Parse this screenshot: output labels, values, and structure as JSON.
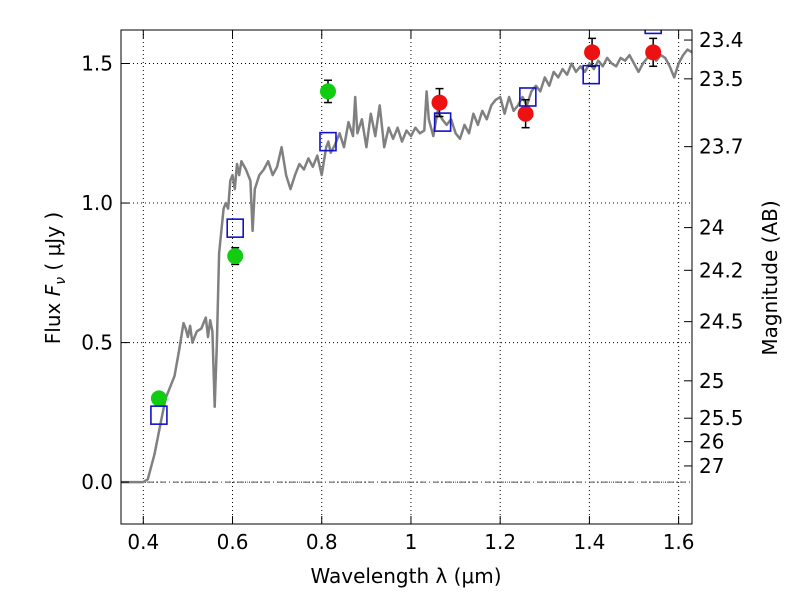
{
  "chart_data": {
    "type": "scatter",
    "xlabel": "Wavelength  λ (μm)",
    "ylabel_prefix": "Flux  ",
    "ylabel_var": "F",
    "ylabel_sub": "ν",
    "ylabel_suffix": "  ( μJy )",
    "y2label": "Magnitude (AB)",
    "xlim": [
      0.35,
      1.63
    ],
    "ylim": [
      -0.15,
      1.62
    ],
    "x_ticks": [
      {
        "value": 0.4,
        "label": "0.4"
      },
      {
        "value": 0.6,
        "label": "0.6"
      },
      {
        "value": 0.8,
        "label": "0.8"
      },
      {
        "value": 1.0,
        "label": "1"
      },
      {
        "value": 1.2,
        "label": "1.2"
      },
      {
        "value": 1.4,
        "label": "1.4"
      },
      {
        "value": 1.6,
        "label": "1.6"
      }
    ],
    "y_ticks": [
      {
        "value": 0.0,
        "label": "0.0"
      },
      {
        "value": 0.5,
        "label": "0.5"
      },
      {
        "value": 1.0,
        "label": "1.0"
      },
      {
        "value": 1.5,
        "label": "1.5"
      }
    ],
    "mag_ticks": [
      {
        "label": "23.4",
        "flux": 1.584
      },
      {
        "label": "23.5",
        "flux": 1.445
      },
      {
        "label": "23.7",
        "flux": 1.202
      },
      {
        "label": "24",
        "flux": 0.912
      },
      {
        "label": "24.2",
        "flux": 0.759
      },
      {
        "label": "24.5",
        "flux": 0.575
      },
      {
        "label": "25",
        "flux": 0.363
      },
      {
        "label": "25.5",
        "flux": 0.229
      },
      {
        "label": "26",
        "flux": 0.145
      },
      {
        "label": "27",
        "flux": 0.058
      }
    ],
    "grid": true,
    "zero_line": 0.0,
    "series": [
      {
        "kind": "line",
        "color": "#808080",
        "points": [
          [
            0.35,
            0.0
          ],
          [
            0.4,
            0.0
          ],
          [
            0.41,
            0.01
          ],
          [
            0.425,
            0.1
          ],
          [
            0.44,
            0.22
          ],
          [
            0.45,
            0.3
          ],
          [
            0.46,
            0.34
          ],
          [
            0.47,
            0.38
          ],
          [
            0.48,
            0.47
          ],
          [
            0.49,
            0.57
          ],
          [
            0.495,
            0.55
          ],
          [
            0.5,
            0.52
          ],
          [
            0.505,
            0.56
          ],
          [
            0.51,
            0.5
          ],
          [
            0.52,
            0.54
          ],
          [
            0.53,
            0.55
          ],
          [
            0.54,
            0.59
          ],
          [
            0.545,
            0.52
          ],
          [
            0.55,
            0.58
          ],
          [
            0.555,
            0.54
          ],
          [
            0.56,
            0.27
          ],
          [
            0.565,
            0.5
          ],
          [
            0.57,
            0.82
          ],
          [
            0.58,
            0.98
          ],
          [
            0.585,
            1.0
          ],
          [
            0.59,
            0.98
          ],
          [
            0.595,
            1.08
          ],
          [
            0.6,
            1.1
          ],
          [
            0.605,
            1.05
          ],
          [
            0.61,
            1.14
          ],
          [
            0.615,
            1.1
          ],
          [
            0.62,
            1.15
          ],
          [
            0.63,
            1.12
          ],
          [
            0.64,
            1.08
          ],
          [
            0.645,
            0.9
          ],
          [
            0.65,
            1.05
          ],
          [
            0.66,
            1.1
          ],
          [
            0.67,
            1.12
          ],
          [
            0.68,
            1.15
          ],
          [
            0.69,
            1.1
          ],
          [
            0.7,
            1.13
          ],
          [
            0.71,
            1.2
          ],
          [
            0.72,
            1.1
          ],
          [
            0.73,
            1.05
          ],
          [
            0.74,
            1.1
          ],
          [
            0.75,
            1.14
          ],
          [
            0.76,
            1.12
          ],
          [
            0.77,
            1.16
          ],
          [
            0.78,
            1.13
          ],
          [
            0.79,
            1.17
          ],
          [
            0.8,
            1.1
          ],
          [
            0.81,
            1.2
          ],
          [
            0.815,
            1.22
          ],
          [
            0.82,
            1.18
          ],
          [
            0.83,
            1.21
          ],
          [
            0.84,
            1.25
          ],
          [
            0.85,
            1.2
          ],
          [
            0.86,
            1.29
          ],
          [
            0.87,
            1.24
          ],
          [
            0.875,
            1.38
          ],
          [
            0.88,
            1.25
          ],
          [
            0.89,
            1.3
          ],
          [
            0.9,
            1.2
          ],
          [
            0.91,
            1.32
          ],
          [
            0.92,
            1.24
          ],
          [
            0.93,
            1.35
          ],
          [
            0.94,
            1.2
          ],
          [
            0.95,
            1.27
          ],
          [
            0.96,
            1.23
          ],
          [
            0.97,
            1.27
          ],
          [
            0.98,
            1.22
          ],
          [
            0.99,
            1.26
          ],
          [
            1.0,
            1.24
          ],
          [
            1.01,
            1.27
          ],
          [
            1.02,
            1.25
          ],
          [
            1.03,
            1.26
          ],
          [
            1.035,
            1.4
          ],
          [
            1.04,
            1.3
          ],
          [
            1.05,
            1.24
          ],
          [
            1.06,
            1.33
          ],
          [
            1.07,
            1.3
          ],
          [
            1.08,
            1.28
          ],
          [
            1.09,
            1.3
          ],
          [
            1.1,
            1.25
          ],
          [
            1.11,
            1.23
          ],
          [
            1.12,
            1.28
          ],
          [
            1.13,
            1.25
          ],
          [
            1.14,
            1.32
          ],
          [
            1.15,
            1.28
          ],
          [
            1.16,
            1.33
          ],
          [
            1.17,
            1.3
          ],
          [
            1.18,
            1.35
          ],
          [
            1.19,
            1.37
          ],
          [
            1.2,
            1.38
          ],
          [
            1.21,
            1.32
          ],
          [
            1.22,
            1.38
          ],
          [
            1.23,
            1.33
          ],
          [
            1.24,
            1.35
          ],
          [
            1.25,
            1.38
          ],
          [
            1.26,
            1.35
          ],
          [
            1.27,
            1.4
          ],
          [
            1.28,
            1.42
          ],
          [
            1.29,
            1.4
          ],
          [
            1.3,
            1.45
          ],
          [
            1.31,
            1.42
          ],
          [
            1.32,
            1.47
          ],
          [
            1.33,
            1.45
          ],
          [
            1.34,
            1.48
          ],
          [
            1.35,
            1.46
          ],
          [
            1.36,
            1.5
          ],
          [
            1.37,
            1.47
          ],
          [
            1.38,
            1.49
          ],
          [
            1.39,
            1.47
          ],
          [
            1.4,
            1.5
          ],
          [
            1.41,
            1.48
          ],
          [
            1.42,
            1.51
          ],
          [
            1.43,
            1.49
          ],
          [
            1.44,
            1.52
          ],
          [
            1.45,
            1.5
          ],
          [
            1.46,
            1.49
          ],
          [
            1.47,
            1.52
          ],
          [
            1.48,
            1.51
          ],
          [
            1.49,
            1.53
          ],
          [
            1.5,
            1.5
          ],
          [
            1.51,
            1.47
          ],
          [
            1.52,
            1.5
          ],
          [
            1.53,
            1.52
          ],
          [
            1.54,
            1.53
          ],
          [
            1.55,
            1.51
          ],
          [
            1.56,
            1.53
          ],
          [
            1.57,
            1.52
          ],
          [
            1.58,
            1.49
          ],
          [
            1.59,
            1.45
          ],
          [
            1.6,
            1.5
          ],
          [
            1.61,
            1.53
          ],
          [
            1.62,
            1.55
          ],
          [
            1.63,
            1.54
          ]
        ]
      },
      {
        "kind": "points",
        "marker": "circle",
        "color": "#11cc11",
        "points": [
          {
            "x": 0.435,
            "y": 0.3,
            "err": 0.02
          },
          {
            "x": 0.606,
            "y": 0.81,
            "err": 0.03
          },
          {
            "x": 0.814,
            "y": 1.4,
            "err": 0.04
          }
        ]
      },
      {
        "kind": "points",
        "marker": "circle",
        "color": "#ee1111",
        "points": [
          {
            "x": 1.064,
            "y": 1.36,
            "err": 0.05
          },
          {
            "x": 1.257,
            "y": 1.32,
            "err": 0.05
          },
          {
            "x": 1.406,
            "y": 1.54,
            "err": 0.05
          },
          {
            "x": 1.543,
            "y": 1.54,
            "err": 0.05
          }
        ]
      },
      {
        "kind": "points",
        "marker": "square",
        "color": "#1111cc",
        "points": [
          {
            "x": 0.435,
            "y": 0.24
          },
          {
            "x": 0.606,
            "y": 0.91
          },
          {
            "x": 0.814,
            "y": 1.22
          },
          {
            "x": 1.071,
            "y": 1.29
          },
          {
            "x": 1.262,
            "y": 1.38
          },
          {
            "x": 1.404,
            "y": 1.46
          },
          {
            "x": 1.543,
            "y": 1.64
          }
        ]
      }
    ]
  }
}
